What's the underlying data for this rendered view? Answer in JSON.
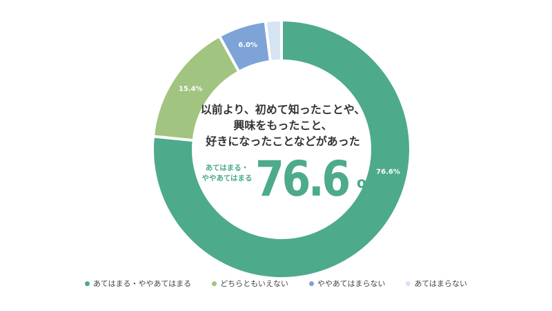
{
  "chart_data": {
    "type": "pie",
    "donut": true,
    "title_lines": [
      "以前より、初めて知ったことや、",
      "興味をもったこと、",
      "好きになったことなどがあった"
    ],
    "highlight": {
      "label_lines": [
        "あてはまる・",
        "ややあてはまる"
      ],
      "value": "76.6",
      "unit": "%"
    },
    "categories": [
      "あてはまる・ややあてはまる",
      "どちらともいえない",
      "ややあてはまらない",
      "あてはまらない"
    ],
    "values": [
      76.6,
      15.4,
      6.0,
      2.0
    ],
    "data_labels": [
      "76.6%",
      "15.4%",
      "6.0%",
      ""
    ],
    "colors": [
      "#4daa8b",
      "#a1c480",
      "#7ea3d6",
      "#d6e3f2"
    ],
    "legend_position": "bottom"
  }
}
